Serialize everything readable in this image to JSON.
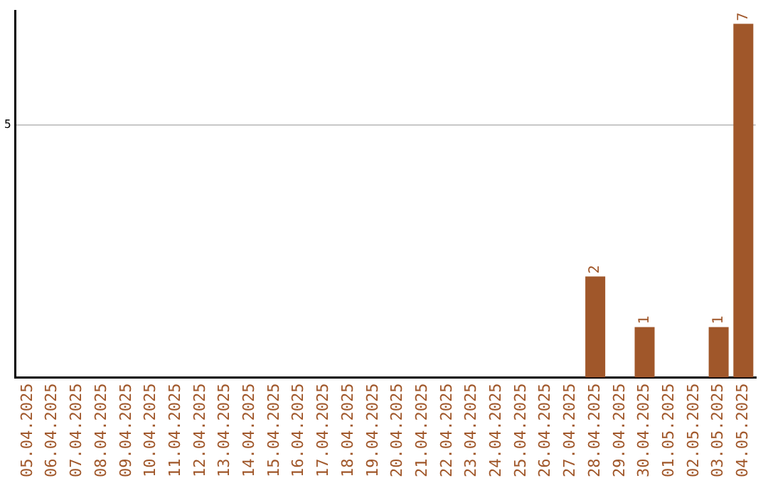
{
  "chart_data": {
    "type": "bar",
    "categories": [
      "05.04.2025",
      "06.04.2025",
      "07.04.2025",
      "08.04.2025",
      "09.04.2025",
      "10.04.2025",
      "11.04.2025",
      "12.04.2025",
      "13.04.2025",
      "14.04.2025",
      "15.04.2025",
      "16.04.2025",
      "17.04.2025",
      "18.04.2025",
      "19.04.2025",
      "20.04.2025",
      "21.04.2025",
      "22.04.2025",
      "23.04.2025",
      "24.04.2025",
      "25.04.2025",
      "26.04.2025",
      "27.04.2025",
      "28.04.2025",
      "29.04.2025",
      "30.04.2025",
      "01.05.2025",
      "02.05.2025",
      "03.05.2025",
      "04.05.2025"
    ],
    "values": [
      null,
      null,
      null,
      null,
      null,
      null,
      null,
      null,
      null,
      null,
      null,
      null,
      null,
      null,
      null,
      null,
      null,
      null,
      null,
      null,
      null,
      null,
      null,
      2,
      null,
      1,
      null,
      null,
      1,
      7
    ],
    "data_labels": true,
    "color": "#a0572a",
    "ylim": [
      0,
      7.25
    ],
    "yticks": [
      5
    ],
    "grid": "y",
    "legend": false
  }
}
